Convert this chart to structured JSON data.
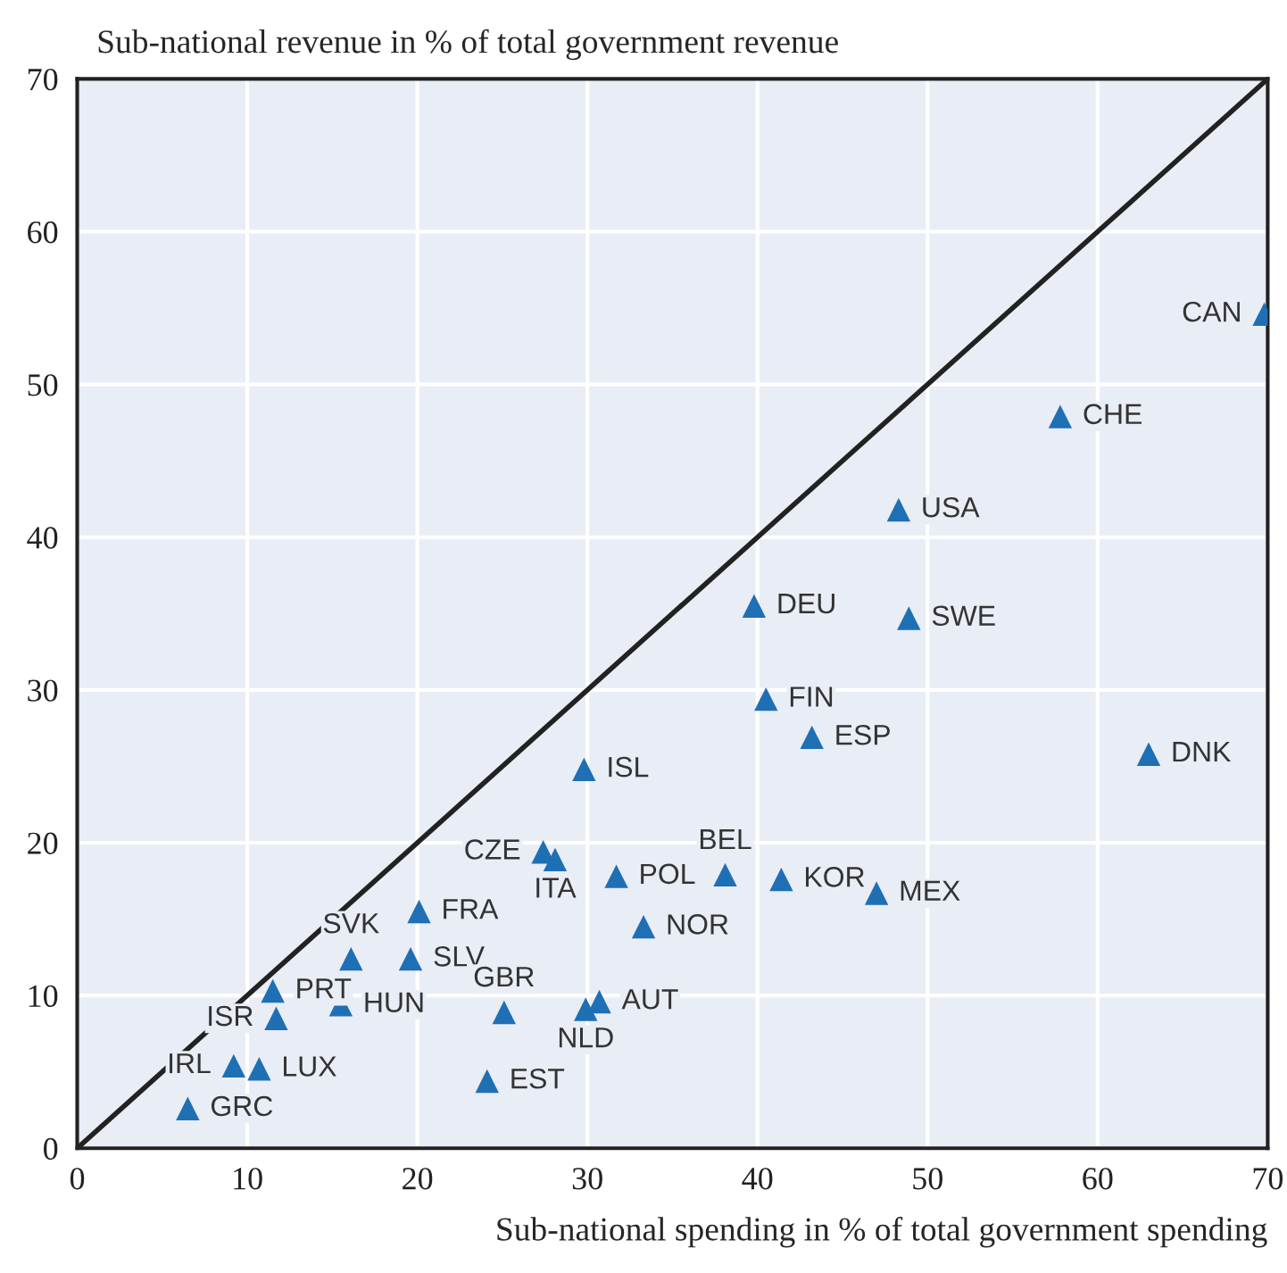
{
  "chart_data": {
    "type": "scatter",
    "xlabel": "Sub-national spending in % of total government spending",
    "ylabel": "Sub-national revenue in % of total government revenue",
    "xlim": [
      0,
      70
    ],
    "ylim": [
      0,
      70
    ],
    "xticks": [
      0,
      10,
      20,
      30,
      40,
      50,
      60,
      70
    ],
    "yticks": [
      0,
      10,
      20,
      30,
      40,
      50,
      60,
      70
    ],
    "grid": true,
    "series": [
      {
        "marker": "triangle",
        "color": "#1f6fb5",
        "x": [
          69.8,
          57.8,
          48.3,
          39.8,
          48.9,
          40.5,
          43.2,
          63.0,
          29.8,
          27.4,
          28.1,
          38.1,
          31.7,
          41.4,
          47.0,
          33.3,
          20.1,
          16.1,
          19.6,
          11.5,
          11.7,
          15.5,
          25.1,
          29.9,
          30.7,
          9.2,
          10.7,
          24.1,
          6.5
        ],
        "values": [
          54.6,
          47.9,
          41.8,
          35.5,
          34.7,
          29.4,
          26.9,
          25.8,
          24.8,
          19.4,
          18.9,
          17.9,
          17.8,
          17.6,
          16.7,
          14.5,
          15.5,
          12.4,
          12.4,
          10.3,
          8.5,
          9.4,
          8.9,
          9.1,
          9.6,
          5.4,
          5.2,
          4.4,
          2.6
        ]
      },
      {
        "type": "line",
        "marker": "none",
        "color": "#222222",
        "x": [
          0,
          70
        ],
        "values": [
          0,
          70
        ]
      }
    ],
    "annotations": [
      {
        "text": "CAN",
        "x": 69.8,
        "y": 54.6
      },
      {
        "text": "CHE",
        "x": 57.8,
        "y": 47.9
      },
      {
        "text": "USA",
        "x": 48.3,
        "y": 41.8
      },
      {
        "text": "DEU",
        "x": 39.8,
        "y": 35.5
      },
      {
        "text": "SWE",
        "x": 48.9,
        "y": 34.7
      },
      {
        "text": "FIN",
        "x": 40.5,
        "y": 29.4
      },
      {
        "text": "ESP",
        "x": 43.2,
        "y": 26.9
      },
      {
        "text": "DNK",
        "x": 63.0,
        "y": 25.8
      },
      {
        "text": "ISL",
        "x": 29.8,
        "y": 24.8
      },
      {
        "text": "CZE",
        "x": 27.4,
        "y": 19.4
      },
      {
        "text": "ITA",
        "x": 28.1,
        "y": 18.9
      },
      {
        "text": "BEL",
        "x": 38.1,
        "y": 17.9
      },
      {
        "text": "POL",
        "x": 31.7,
        "y": 17.8
      },
      {
        "text": "KOR",
        "x": 41.4,
        "y": 17.6
      },
      {
        "text": "MEX",
        "x": 47.0,
        "y": 16.7
      },
      {
        "text": "NOR",
        "x": 33.3,
        "y": 14.5
      },
      {
        "text": "FRA",
        "x": 20.1,
        "y": 15.5
      },
      {
        "text": "SVK",
        "x": 16.1,
        "y": 12.4
      },
      {
        "text": "SLV",
        "x": 19.6,
        "y": 12.4
      },
      {
        "text": "PRT",
        "x": 11.5,
        "y": 10.3
      },
      {
        "text": "ISR",
        "x": 11.7,
        "y": 8.5
      },
      {
        "text": "HUN",
        "x": 15.5,
        "y": 9.4
      },
      {
        "text": "GBR",
        "x": 25.1,
        "y": 8.9
      },
      {
        "text": "NLD",
        "x": 29.9,
        "y": 9.1
      },
      {
        "text": "AUT",
        "x": 30.7,
        "y": 9.6
      },
      {
        "text": "IRL",
        "x": 9.2,
        "y": 5.4
      },
      {
        "text": "LUX",
        "x": 10.7,
        "y": 5.2
      },
      {
        "text": "EST",
        "x": 24.1,
        "y": 4.4
      },
      {
        "text": "GRC",
        "x": 6.5,
        "y": 2.6
      }
    ]
  }
}
